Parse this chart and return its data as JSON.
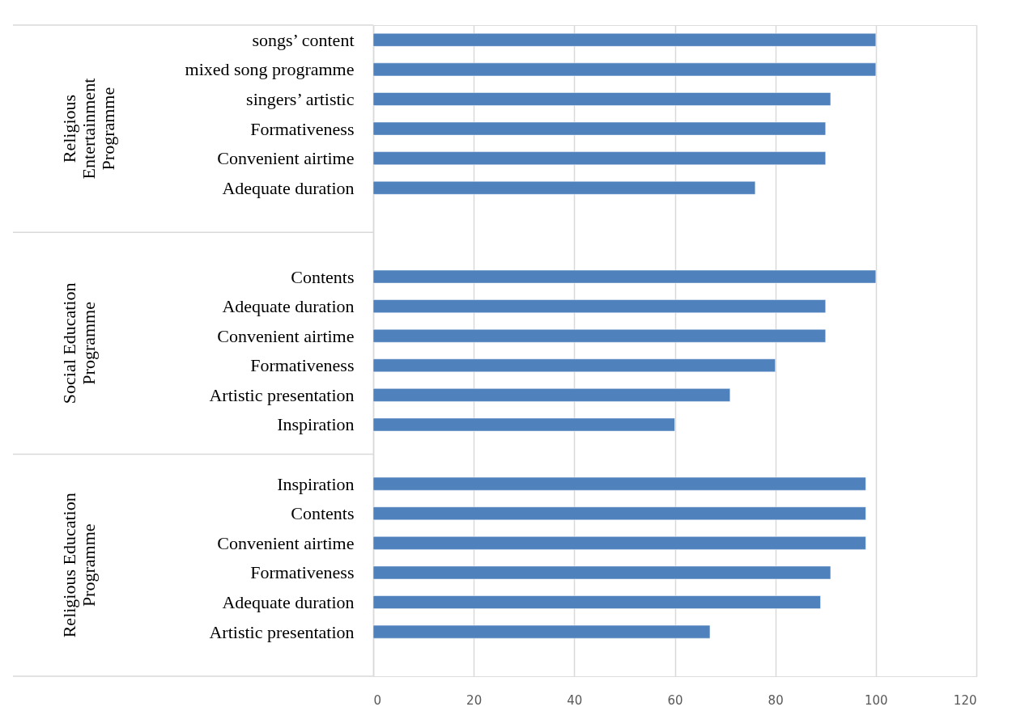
{
  "chart_data": {
    "type": "bar",
    "orientation": "horizontal",
    "categories": [
      "songs’ content",
      "mixed song programme",
      "singers’ artistic",
      "Formativeness",
      "Convenient airtime",
      "Adequate duration",
      null,
      null,
      "Contents",
      "Adequate duration",
      "Convenient airtime",
      "Formativeness",
      "Artistic presentation",
      "Inspiration",
      null,
      "Inspiration",
      "Contents",
      "Convenient airtime",
      "Formativeness",
      "Adequate duration",
      "Artistic presentation",
      null
    ],
    "values": [
      100,
      100,
      91,
      90,
      90,
      76,
      null,
      null,
      100,
      90,
      90,
      80,
      71,
      60,
      null,
      98,
      98,
      98,
      91,
      89,
      67,
      null
    ],
    "color": "#4f81bd",
    "xlim": [
      0,
      120
    ],
    "xticks": [
      0,
      20,
      40,
      60,
      80,
      100,
      120
    ],
    "grid": "x",
    "annotations": [
      "Religious Entertainment Programme",
      "Social Education Programme",
      "Religious Education Programme"
    ]
  }
}
